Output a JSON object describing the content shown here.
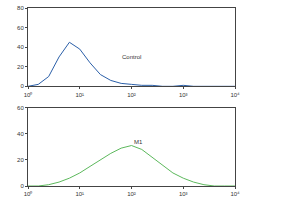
{
  "chart_data": [
    {
      "type": "line",
      "log": "x",
      "color": "#2b5fa8",
      "x": [
        1,
        1.58,
        2.51,
        3.98,
        6.31,
        10,
        15.8,
        25.1,
        39.8,
        63.1,
        100,
        158,
        251,
        398,
        631,
        1000,
        1585,
        2512,
        3981,
        6310,
        10000
      ],
      "values": [
        0,
        2,
        10,
        30,
        45,
        38,
        24,
        12,
        6,
        3,
        2,
        1,
        1,
        0,
        0,
        1,
        0,
        0,
        0,
        0,
        0
      ],
      "xlim": [
        1,
        10000
      ],
      "xticks": [
        {
          "value": 1,
          "label": "10⁰"
        },
        {
          "value": 10,
          "label": "10¹"
        },
        {
          "value": 100,
          "label": "10²"
        },
        {
          "value": 1000,
          "label": "10³"
        },
        {
          "value": 10000,
          "label": "10⁴"
        }
      ],
      "ylim": [
        0,
        80
      ],
      "yticks": [
        0,
        20,
        40,
        60,
        80
      ],
      "annotations": [
        {
          "text": "Control",
          "x": 60,
          "y": 30
        }
      ]
    },
    {
      "type": "line",
      "log": "x",
      "color": "#5cb85c",
      "x": [
        1,
        1.58,
        2.51,
        3.98,
        6.31,
        10,
        15.8,
        25.1,
        39.8,
        63.1,
        100,
        158,
        251,
        398,
        631,
        1000,
        1585,
        2512,
        3981,
        6310,
        10000
      ],
      "values": [
        0,
        0,
        1,
        3,
        6,
        10,
        15,
        20,
        25,
        29,
        31,
        28,
        22,
        16,
        10,
        6,
        3,
        1,
        0,
        0,
        0
      ],
      "xlim": [
        1,
        10000
      ],
      "xticks": [
        {
          "value": 1,
          "label": "10⁰"
        },
        {
          "value": 10,
          "label": "10¹"
        },
        {
          "value": 100,
          "label": "10²"
        },
        {
          "value": 1000,
          "label": "10³"
        },
        {
          "value": 10000,
          "label": "10⁴"
        }
      ],
      "ylim": [
        0,
        60
      ],
      "yticks": [
        0,
        20,
        40,
        60
      ],
      "annotations": [
        {
          "text": "M1",
          "x": 100,
          "y": 34
        }
      ]
    }
  ]
}
